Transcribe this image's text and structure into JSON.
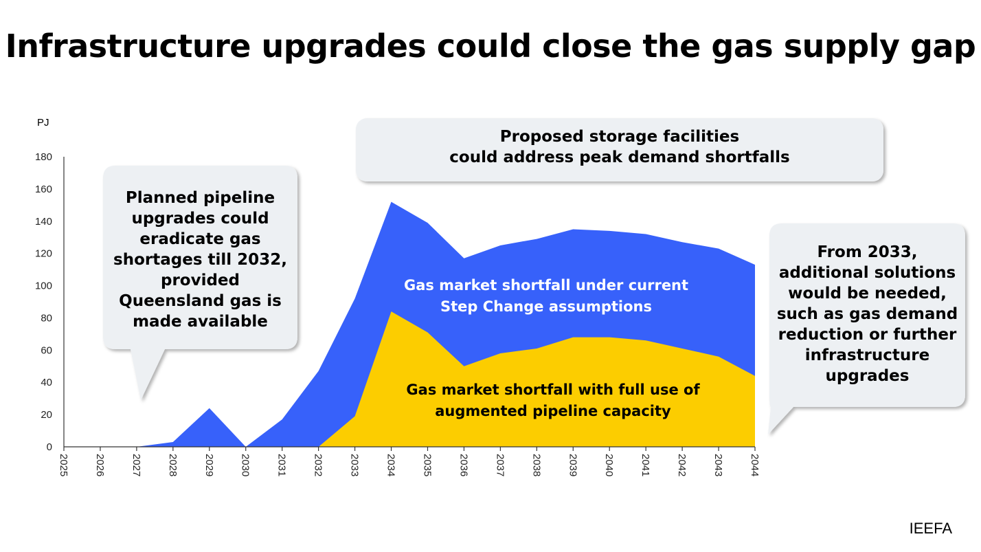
{
  "chart_data": {
    "type": "area",
    "title": "Infrastructure upgrades could close the gas supply gap",
    "ylabel": "PJ",
    "ylim": [
      0,
      180
    ],
    "yticks": [
      0,
      20,
      40,
      60,
      80,
      100,
      120,
      140,
      160,
      180
    ],
    "x": [
      2025,
      2026,
      2027,
      2028,
      2029,
      2030,
      2031,
      2032,
      2033,
      2034,
      2035,
      2036,
      2037,
      2038,
      2039,
      2040,
      2041,
      2042,
      2043,
      2044
    ],
    "series": [
      {
        "name": "Gas market shortfall under current Step Change assumptions",
        "color": "#3761fa",
        "values": [
          0,
          0,
          0,
          3,
          24,
          0,
          17,
          47,
          92,
          152,
          139,
          117,
          125,
          129,
          135,
          134,
          132,
          127,
          123,
          113
        ]
      },
      {
        "name": "Gas market shortfall with full use of augmented pipeline capacity",
        "color": "#fccd00",
        "values": [
          0,
          0,
          0,
          0,
          0,
          0,
          0,
          0,
          19,
          84,
          71,
          50,
          58,
          61,
          68,
          68,
          66,
          61,
          56,
          44
        ]
      }
    ],
    "grid": false,
    "annotations": [
      "Planned pipeline upgrades could eradicate gas shortages till 2032, provided Queensland gas is made available",
      "Proposed storage facilities could address peak demand shortfalls",
      "From 2033, additional solutions would be needed, such as gas demand reduction or further infrastructure upgrades"
    ]
  },
  "callouts": {
    "left": [
      "Planned pipeline",
      "upgrades could",
      "eradicate gas",
      "shortages till 2032,",
      "provided",
      "Queensland gas is",
      "made available"
    ],
    "top": [
      "Proposed storage facilities",
      "could address peak demand shortfalls"
    ],
    "right": [
      "From 2033,",
      "additional solutions",
      "would be needed,",
      "such as gas demand",
      "reduction or further",
      "infrastructure",
      "upgrades"
    ]
  },
  "area_labels": {
    "blue": [
      "Gas market shortfall under current",
      "Step Change assumptions"
    ],
    "yellow": [
      "Gas market shortfall with full use of",
      "augmented pipeline capacity"
    ]
  },
  "source": "IEEFA"
}
